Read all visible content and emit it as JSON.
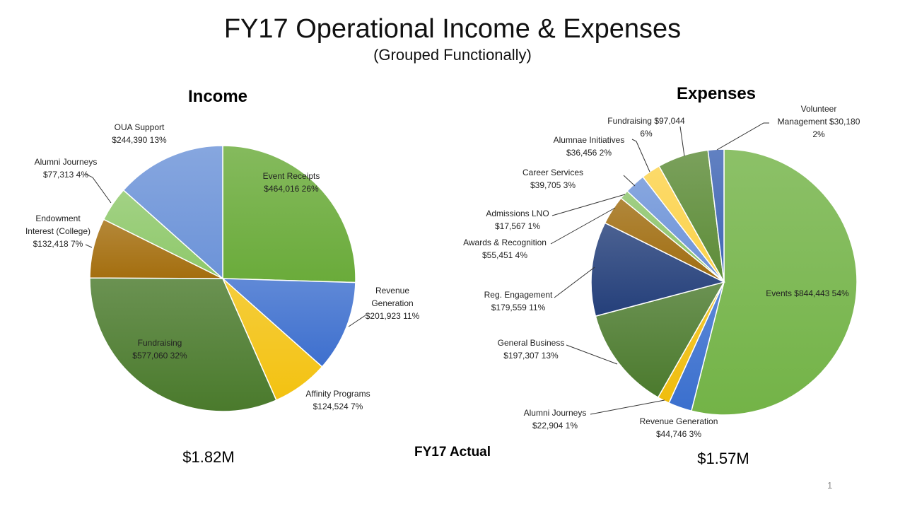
{
  "slide": {
    "title": "FY17 Operational Income & Expenses",
    "subtitle": "(Grouped Functionally)",
    "footer_label": "FY17 Actual",
    "slide_number": "1"
  },
  "chart_data": [
    {
      "type": "pie",
      "title": "Income",
      "total_label": "$1.82M",
      "slices": [
        {
          "name": "Event Receipts",
          "amount": "$464,016",
          "percent": "26%",
          "value": 464016,
          "color": "#6aab3a"
        },
        {
          "name": "Revenue Generation",
          "amount": "$201,923",
          "percent": "11%",
          "value": 201923,
          "color": "#3d6fce"
        },
        {
          "name": "Affinity Programs",
          "amount": "$124,524",
          "percent": "7%",
          "value": 124524,
          "color": "#f3c211"
        },
        {
          "name": "Fundraising",
          "amount": "$577,060",
          "percent": "32%",
          "value": 577060,
          "color": "#4a7a2c"
        },
        {
          "name": "Endowment Interest (College)",
          "amount": "$132,418",
          "percent": "7%",
          "value": 132418,
          "color": "#a46e0e"
        },
        {
          "name": "Alumni Journeys",
          "amount": "$77,313",
          "percent": "4%",
          "value": 77313,
          "color": "#8ec86a"
        },
        {
          "name": "OUA Support",
          "amount": "$244,390",
          "percent": "13%",
          "value": 244390,
          "color": "#6c93d8"
        }
      ]
    },
    {
      "type": "pie",
      "title": "Expenses",
      "total_label": "$1.57M",
      "slices": [
        {
          "name": "Events",
          "amount": "$844,443",
          "percent": "54%",
          "value": 844443,
          "color": "#73b347"
        },
        {
          "name": "Revenue Generation",
          "amount": "$44,746",
          "percent": "3%",
          "value": 44746,
          "color": "#3a6fce"
        },
        {
          "name": "Alumni Journeys",
          "amount": "$22,904",
          "percent": "1%",
          "value": 22904,
          "color": "#f0bd0c"
        },
        {
          "name": "General Business",
          "amount": "$197,307",
          "percent": "13%",
          "value": 197307,
          "color": "#4b7a2d"
        },
        {
          "name": "Reg. Engagement",
          "amount": "$179,559",
          "percent": "11%",
          "value": 179559,
          "color": "#243f7a"
        },
        {
          "name": "Awards & Recognition",
          "amount": "$55,451",
          "percent": "4%",
          "value": 55451,
          "color": "#a06d10"
        },
        {
          "name": "Admissions LNO",
          "amount": "$17,567",
          "percent": "1%",
          "value": 17567,
          "color": "#8cc46a"
        },
        {
          "name": "Career Services",
          "amount": "$39,705",
          "percent": "3%",
          "value": 39705,
          "color": "#6d93d8"
        },
        {
          "name": "Alumnae Initiatives",
          "amount": "$36,456",
          "percent": "2%",
          "value": 36456,
          "color": "#fcd24a"
        },
        {
          "name": "Fundraising",
          "amount": "$97,044",
          "percent": "6%",
          "value": 97044,
          "color": "#5d8c38"
        },
        {
          "name": "Volunteer Management",
          "amount": "$30,180",
          "percent": "2%",
          "value": 30180,
          "color": "#3f65b4"
        }
      ]
    }
  ]
}
